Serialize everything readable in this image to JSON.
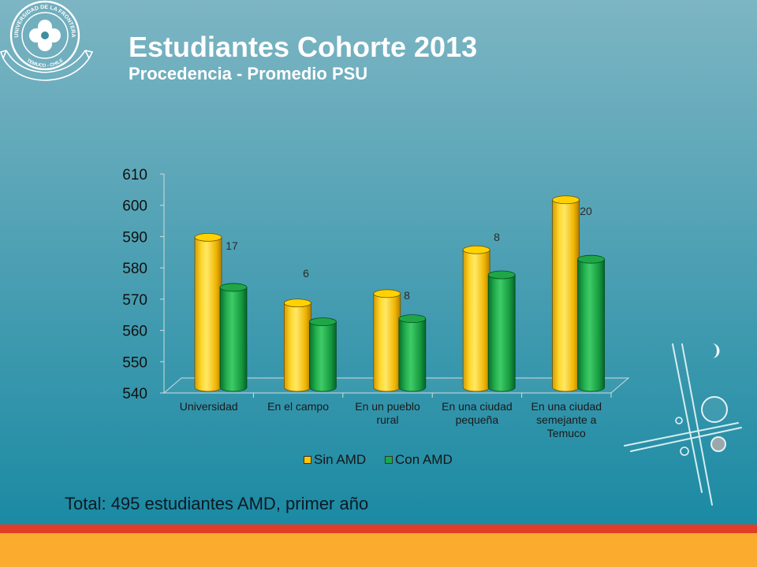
{
  "slide": {
    "title": "Estudiantes Cohorte 2013",
    "subtitle": "Procedencia - Promedio PSU",
    "footer_note": "Total: 495 estudiantes AMD, primer año"
  },
  "logo": {
    "icon": "university-seal-icon",
    "ring_top_text": "UNIVERSIDAD DE LA FRONTERA",
    "ring_bottom_text": "TEMUCO - CHILE"
  },
  "decoration": {
    "icon": "crescent-icon"
  },
  "colors": {
    "background_top": "#7db5c3",
    "background_bottom": "#1b8aa3",
    "stripe_red": "#e23b26",
    "stripe_orange": "#fbab2d"
  },
  "chart_data": {
    "type": "bar",
    "three_d": true,
    "categories": [
      "Universidad",
      "En el campo",
      "En un pueblo rural",
      "En una ciudad pequeña",
      "En una ciudad semejante a Temuco"
    ],
    "series": [
      {
        "name": "Sin AMD",
        "color": "#ffc800",
        "values": [
          588,
          567,
          570,
          584,
          600
        ]
      },
      {
        "name": "Con AMD",
        "color": "#1fa84a",
        "values": [
          572,
          561,
          562,
          576,
          581
        ]
      }
    ],
    "data_labels": [
      "17",
      "6",
      "8",
      "8",
      "20"
    ],
    "ylim": [
      540,
      610
    ],
    "yticks": [
      540,
      550,
      560,
      570,
      580,
      590,
      600,
      610
    ],
    "grid": false,
    "legend": "bottom"
  }
}
